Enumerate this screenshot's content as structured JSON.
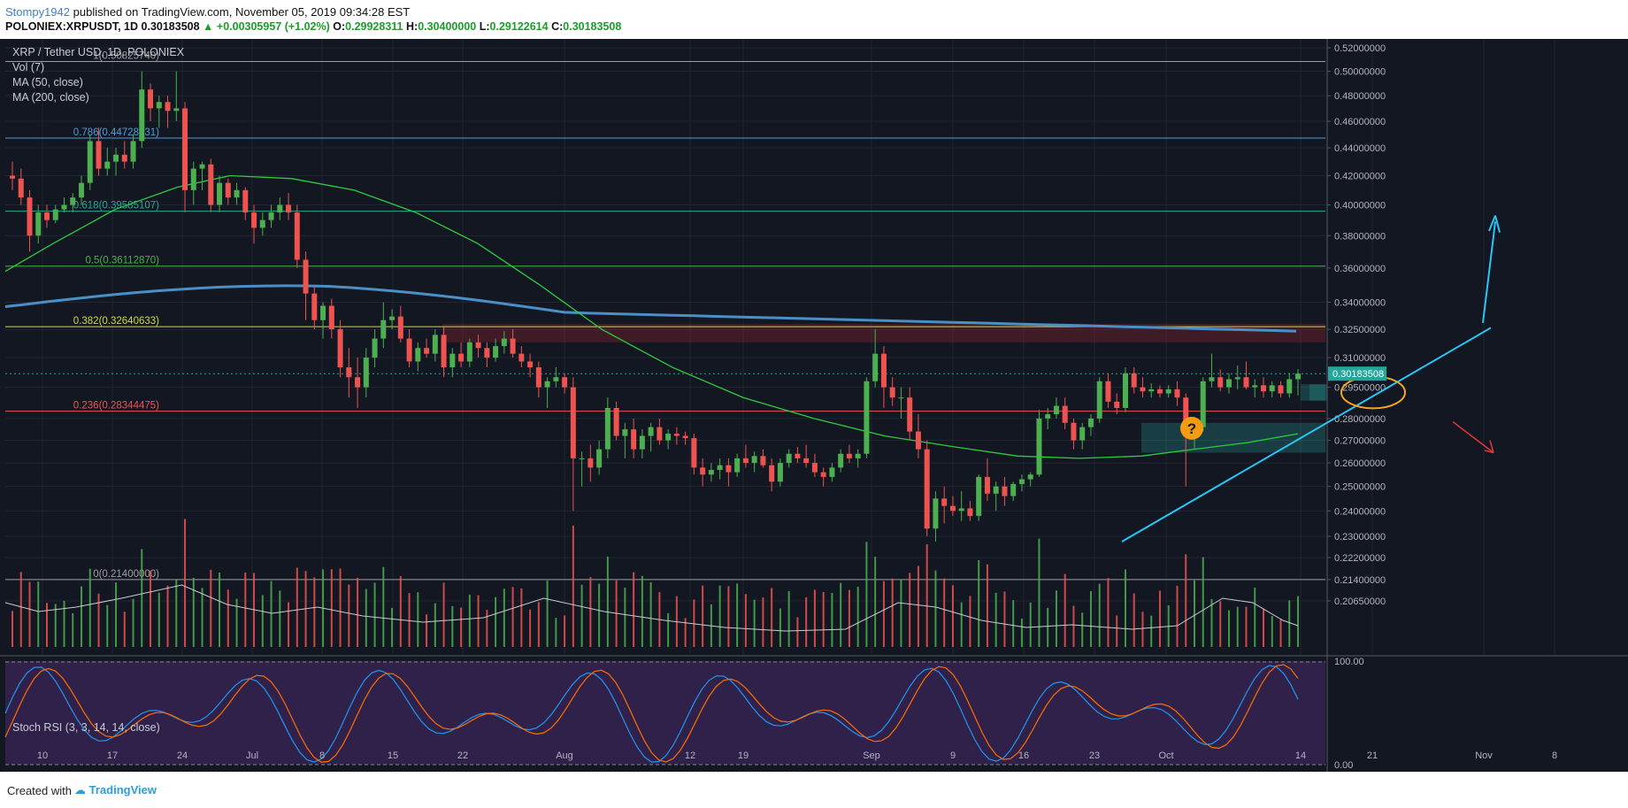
{
  "header": {
    "user": "Stompy1942",
    "published": "published on TradingView.com, November 05, 2019 09:34:28 EST",
    "symbol": "POLONIEX:XRPUSDT, 1D",
    "last": "0.30183508",
    "change": "▲ +0.00305957 (+1.02%)",
    "o_label": "O:",
    "o": "0.29928311",
    "h_label": "H:",
    "h": "0.30400000",
    "l_label": "L:",
    "l": "0.29122614",
    "c_label": "C:",
    "c": "0.30183508"
  },
  "legend": {
    "title": "XRP / Tether USD, 1D, POLONIEX",
    "vol": "Vol (7)",
    "ma50": "MA (50, close)",
    "ma200": "MA (200, close)",
    "stoch": "Stoch RSI (3, 3, 14, 14, close)"
  },
  "footer": {
    "created": "Created with",
    "brand": "TradingView"
  },
  "colors": {
    "background": "#131722",
    "up": "#26a69a",
    "up_candle": "#4caf50",
    "down_candle": "#ef5350",
    "ma50": "#2ecc40",
    "ma200": "#4a90c8",
    "trendline": "#29c5f6",
    "arrow_down": "#e53935",
    "ellipse": "#f5a623",
    "question_badge": "#f39c12"
  },
  "chart_data": {
    "type": "candlestick",
    "title": "XRP / Tether USD, 1D, POLONIEX",
    "ylim": [
      0.2065,
      0.525
    ],
    "yscale": "log",
    "price_axis_labels": [
      "0.52000000",
      "0.50000000",
      "0.48000000",
      "0.46000000",
      "0.44000000",
      "0.42000000",
      "0.40000000",
      "0.38000000",
      "0.36000000",
      "0.34000000",
      "0.32500000",
      "0.31000000",
      "0.29500000",
      "0.28000000",
      "0.27000000",
      "0.26000000",
      "0.25000000",
      "0.24000000",
      "0.23000000",
      "0.22200000",
      "0.21400000",
      "0.20650000"
    ],
    "x_axis_labels": [
      "10",
      "17",
      "24",
      "Jul",
      "8",
      "15",
      "22",
      "Aug",
      "12",
      "19",
      "Sep",
      "9",
      "16",
      "23",
      "Oct",
      "14",
      "21",
      "Nov",
      "8"
    ],
    "last_price_label": "0.30183508",
    "fibonacci": [
      {
        "label": "1(0.50825740)",
        "value": 0.5082574,
        "color": "#9e9e9e"
      },
      {
        "label": "0.786(0.44728631)",
        "value": 0.44728631,
        "color": "#4a9fd8"
      },
      {
        "label": "0.618(0.39585107)",
        "value": 0.39585107,
        "color": "#26a69a"
      },
      {
        "label": "0.5(0.36112870)",
        "value": 0.3611287,
        "color": "#4caf50"
      },
      {
        "label": "0.382(0.32640633)",
        "value": 0.32640633,
        "color": "#cddc39"
      },
      {
        "label": "0.236(0.28344475)",
        "value": 0.28344475,
        "color": "#ef5350"
      },
      {
        "label": "0(0.21400000)",
        "value": 0.214,
        "color": "#9e9e9e"
      }
    ],
    "stoch_axis_labels": [
      "100.00",
      "0.00"
    ],
    "candles": [
      [
        0.42,
        0.43,
        0.41,
        0.418
      ],
      [
        0.418,
        0.425,
        0.4,
        0.405
      ],
      [
        0.405,
        0.41,
        0.37,
        0.38
      ],
      [
        0.38,
        0.4,
        0.375,
        0.395
      ],
      [
        0.395,
        0.4,
        0.385,
        0.39
      ],
      [
        0.39,
        0.4,
        0.388,
        0.397
      ],
      [
        0.397,
        0.405,
        0.395,
        0.4
      ],
      [
        0.4,
        0.408,
        0.395,
        0.405
      ],
      [
        0.405,
        0.42,
        0.4,
        0.415
      ],
      [
        0.415,
        0.45,
        0.41,
        0.445
      ],
      [
        0.445,
        0.455,
        0.42,
        0.425
      ],
      [
        0.425,
        0.44,
        0.42,
        0.43
      ],
      [
        0.43,
        0.44,
        0.42,
        0.435
      ],
      [
        0.435,
        0.445,
        0.425,
        0.43
      ],
      [
        0.43,
        0.45,
        0.425,
        0.445
      ],
      [
        0.445,
        0.5,
        0.44,
        0.485
      ],
      [
        0.485,
        0.49,
        0.46,
        0.47
      ],
      [
        0.47,
        0.48,
        0.455,
        0.475
      ],
      [
        0.475,
        0.48,
        0.455,
        0.468
      ],
      [
        0.468,
        0.5,
        0.46,
        0.47
      ],
      [
        0.47,
        0.475,
        0.395,
        0.41
      ],
      [
        0.41,
        0.43,
        0.4,
        0.425
      ],
      [
        0.425,
        0.43,
        0.41,
        0.428
      ],
      [
        0.428,
        0.432,
        0.395,
        0.4
      ],
      [
        0.4,
        0.42,
        0.395,
        0.415
      ],
      [
        0.415,
        0.418,
        0.4,
        0.405
      ],
      [
        0.405,
        0.415,
        0.4,
        0.41
      ],
      [
        0.41,
        0.412,
        0.39,
        0.395
      ],
      [
        0.395,
        0.4,
        0.375,
        0.385
      ],
      [
        0.385,
        0.395,
        0.38,
        0.39
      ],
      [
        0.39,
        0.4,
        0.385,
        0.395
      ],
      [
        0.395,
        0.405,
        0.39,
        0.4
      ],
      [
        0.4,
        0.408,
        0.39,
        0.395
      ],
      [
        0.395,
        0.4,
        0.36,
        0.365
      ],
      [
        0.365,
        0.37,
        0.33,
        0.345
      ],
      [
        0.345,
        0.35,
        0.325,
        0.33
      ],
      [
        0.33,
        0.34,
        0.32,
        0.338
      ],
      [
        0.338,
        0.342,
        0.32,
        0.325
      ],
      [
        0.325,
        0.33,
        0.3,
        0.305
      ],
      [
        0.305,
        0.315,
        0.29,
        0.3
      ],
      [
        0.3,
        0.31,
        0.285,
        0.295
      ],
      [
        0.295,
        0.315,
        0.29,
        0.31
      ],
      [
        0.31,
        0.325,
        0.305,
        0.32
      ],
      [
        0.32,
        0.34,
        0.315,
        0.33
      ],
      [
        0.33,
        0.336,
        0.325,
        0.332
      ],
      [
        0.332,
        0.338,
        0.318,
        0.32
      ],
      [
        0.32,
        0.325,
        0.305,
        0.308
      ],
      [
        0.308,
        0.318,
        0.303,
        0.315
      ],
      [
        0.315,
        0.32,
        0.31,
        0.312
      ],
      [
        0.312,
        0.325,
        0.308,
        0.322
      ],
      [
        0.322,
        0.326,
        0.3,
        0.305
      ],
      [
        0.305,
        0.315,
        0.3,
        0.312
      ],
      [
        0.312,
        0.318,
        0.305,
        0.308
      ],
      [
        0.308,
        0.32,
        0.305,
        0.318
      ],
      [
        0.318,
        0.322,
        0.31,
        0.315
      ],
      [
        0.315,
        0.318,
        0.305,
        0.31
      ],
      [
        0.31,
        0.32,
        0.308,
        0.316
      ],
      [
        0.316,
        0.324,
        0.312,
        0.32
      ],
      [
        0.32,
        0.325,
        0.31,
        0.312
      ],
      [
        0.312,
        0.316,
        0.305,
        0.308
      ],
      [
        0.308,
        0.312,
        0.3,
        0.305
      ],
      [
        0.305,
        0.308,
        0.29,
        0.295
      ],
      [
        0.295,
        0.3,
        0.285,
        0.298
      ],
      [
        0.298,
        0.305,
        0.295,
        0.3
      ],
      [
        0.3,
        0.302,
        0.292,
        0.295
      ],
      [
        0.295,
        0.3,
        0.24,
        0.262
      ],
      [
        0.262,
        0.265,
        0.25,
        0.262
      ],
      [
        0.262,
        0.268,
        0.252,
        0.258
      ],
      [
        0.258,
        0.27,
        0.255,
        0.266
      ],
      [
        0.266,
        0.29,
        0.262,
        0.285
      ],
      [
        0.285,
        0.288,
        0.27,
        0.272
      ],
      [
        0.272,
        0.278,
        0.262,
        0.275
      ],
      [
        0.275,
        0.28,
        0.262,
        0.266
      ],
      [
        0.266,
        0.275,
        0.262,
        0.272
      ],
      [
        0.272,
        0.278,
        0.265,
        0.276
      ],
      [
        0.276,
        0.28,
        0.268,
        0.27
      ],
      [
        0.27,
        0.275,
        0.266,
        0.273
      ],
      [
        0.273,
        0.276,
        0.268,
        0.272
      ],
      [
        0.272,
        0.274,
        0.268,
        0.271
      ],
      [
        0.271,
        0.273,
        0.255,
        0.258
      ],
      [
        0.258,
        0.262,
        0.25,
        0.255
      ],
      [
        0.255,
        0.26,
        0.252,
        0.257
      ],
      [
        0.257,
        0.262,
        0.253,
        0.259
      ],
      [
        0.259,
        0.262,
        0.25,
        0.256
      ],
      [
        0.256,
        0.264,
        0.254,
        0.262
      ],
      [
        0.262,
        0.268,
        0.258,
        0.26
      ],
      [
        0.26,
        0.265,
        0.256,
        0.263
      ],
      [
        0.263,
        0.266,
        0.258,
        0.259
      ],
      [
        0.259,
        0.262,
        0.248,
        0.252
      ],
      [
        0.252,
        0.262,
        0.25,
        0.26
      ],
      [
        0.26,
        0.266,
        0.258,
        0.264
      ],
      [
        0.264,
        0.267,
        0.26,
        0.262
      ],
      [
        0.262,
        0.268,
        0.258,
        0.26
      ],
      [
        0.26,
        0.264,
        0.254,
        0.256
      ],
      [
        0.256,
        0.258,
        0.25,
        0.254
      ],
      [
        0.254,
        0.26,
        0.252,
        0.258
      ],
      [
        0.258,
        0.266,
        0.256,
        0.264
      ],
      [
        0.264,
        0.268,
        0.26,
        0.262
      ],
      [
        0.262,
        0.266,
        0.258,
        0.264
      ],
      [
        0.264,
        0.3,
        0.262,
        0.298
      ],
      [
        0.298,
        0.325,
        0.295,
        0.312
      ],
      [
        0.312,
        0.316,
        0.285,
        0.295
      ],
      [
        0.295,
        0.3,
        0.286,
        0.29
      ],
      [
        0.29,
        0.295,
        0.28,
        0.29
      ],
      [
        0.29,
        0.295,
        0.27,
        0.274
      ],
      [
        0.274,
        0.282,
        0.262,
        0.266
      ],
      [
        0.266,
        0.27,
        0.23,
        0.233
      ],
      [
        0.233,
        0.248,
        0.228,
        0.245
      ],
      [
        0.245,
        0.25,
        0.235,
        0.242
      ],
      [
        0.242,
        0.246,
        0.238,
        0.24
      ],
      [
        0.24,
        0.248,
        0.236,
        0.241
      ],
      [
        0.241,
        0.244,
        0.236,
        0.238
      ],
      [
        0.238,
        0.255,
        0.236,
        0.254
      ],
      [
        0.254,
        0.262,
        0.244,
        0.247
      ],
      [
        0.247,
        0.252,
        0.24,
        0.25
      ],
      [
        0.25,
        0.254,
        0.242,
        0.246
      ],
      [
        0.246,
        0.252,
        0.244,
        0.251
      ],
      [
        0.251,
        0.255,
        0.248,
        0.253
      ],
      [
        0.253,
        0.256,
        0.25,
        0.255
      ],
      [
        0.255,
        0.284,
        0.254,
        0.28
      ],
      [
        0.28,
        0.285,
        0.275,
        0.282
      ],
      [
        0.282,
        0.29,
        0.28,
        0.286
      ],
      [
        0.286,
        0.29,
        0.275,
        0.278
      ],
      [
        0.278,
        0.28,
        0.266,
        0.27
      ],
      [
        0.27,
        0.278,
        0.266,
        0.276
      ],
      [
        0.276,
        0.282,
        0.272,
        0.28
      ],
      [
        0.28,
        0.3,
        0.278,
        0.298
      ],
      [
        0.298,
        0.302,
        0.285,
        0.288
      ],
      [
        0.288,
        0.292,
        0.282,
        0.285
      ],
      [
        0.285,
        0.305,
        0.283,
        0.302
      ],
      [
        0.302,
        0.305,
        0.292,
        0.295
      ],
      [
        0.295,
        0.3,
        0.29,
        0.293
      ],
      [
        0.293,
        0.297,
        0.29,
        0.294
      ],
      [
        0.294,
        0.296,
        0.29,
        0.292
      ],
      [
        0.292,
        0.296,
        0.29,
        0.294
      ],
      [
        0.294,
        0.298,
        0.286,
        0.29
      ],
      [
        0.29,
        0.292,
        0.25,
        0.272
      ],
      [
        0.272,
        0.28,
        0.266,
        0.276
      ],
      [
        0.276,
        0.3,
        0.274,
        0.298
      ],
      [
        0.298,
        0.312,
        0.295,
        0.3
      ],
      [
        0.3,
        0.304,
        0.293,
        0.295
      ],
      [
        0.295,
        0.302,
        0.292,
        0.299
      ],
      [
        0.299,
        0.306,
        0.294,
        0.3
      ],
      [
        0.3,
        0.308,
        0.294,
        0.295
      ],
      [
        0.295,
        0.299,
        0.29,
        0.296
      ],
      [
        0.296,
        0.3,
        0.29,
        0.293
      ],
      [
        0.293,
        0.298,
        0.29,
        0.296
      ],
      [
        0.296,
        0.298,
        0.29,
        0.292
      ],
      [
        0.292,
        0.302,
        0.29,
        0.299
      ],
      [
        0.299,
        0.304,
        0.291,
        0.3018
      ]
    ],
    "volume_note": "volume bars sized relative to max; colored by candle direction"
  }
}
